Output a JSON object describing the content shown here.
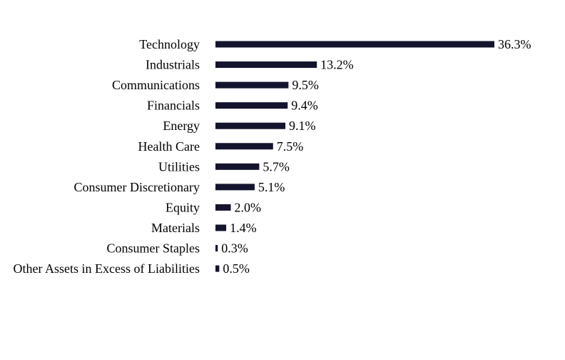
{
  "chart_data": {
    "type": "bar",
    "orientation": "horizontal",
    "categories": [
      "Technology",
      "Industrials",
      "Communications",
      "Financials",
      "Energy",
      "Health Care",
      "Utilities",
      "Consumer Discretionary",
      "Equity",
      "Materials",
      "Consumer Staples",
      "Other Assets in Excess of Liabilities"
    ],
    "values": [
      36.3,
      13.2,
      9.5,
      9.4,
      9.1,
      7.5,
      5.7,
      5.1,
      2.0,
      1.4,
      0.3,
      0.5
    ],
    "value_labels": [
      "36.3%",
      "13.2%",
      "9.5%",
      "9.4%",
      "9.1%",
      "7.5%",
      "5.7%",
      "5.1%",
      "2.0%",
      "1.4%",
      "0.3%",
      "0.5%"
    ],
    "title": "",
    "xlabel": "",
    "ylabel": "",
    "xlim": [
      0,
      36.3
    ],
    "grid": false,
    "legend": "none",
    "bar_color": "#14142e"
  }
}
